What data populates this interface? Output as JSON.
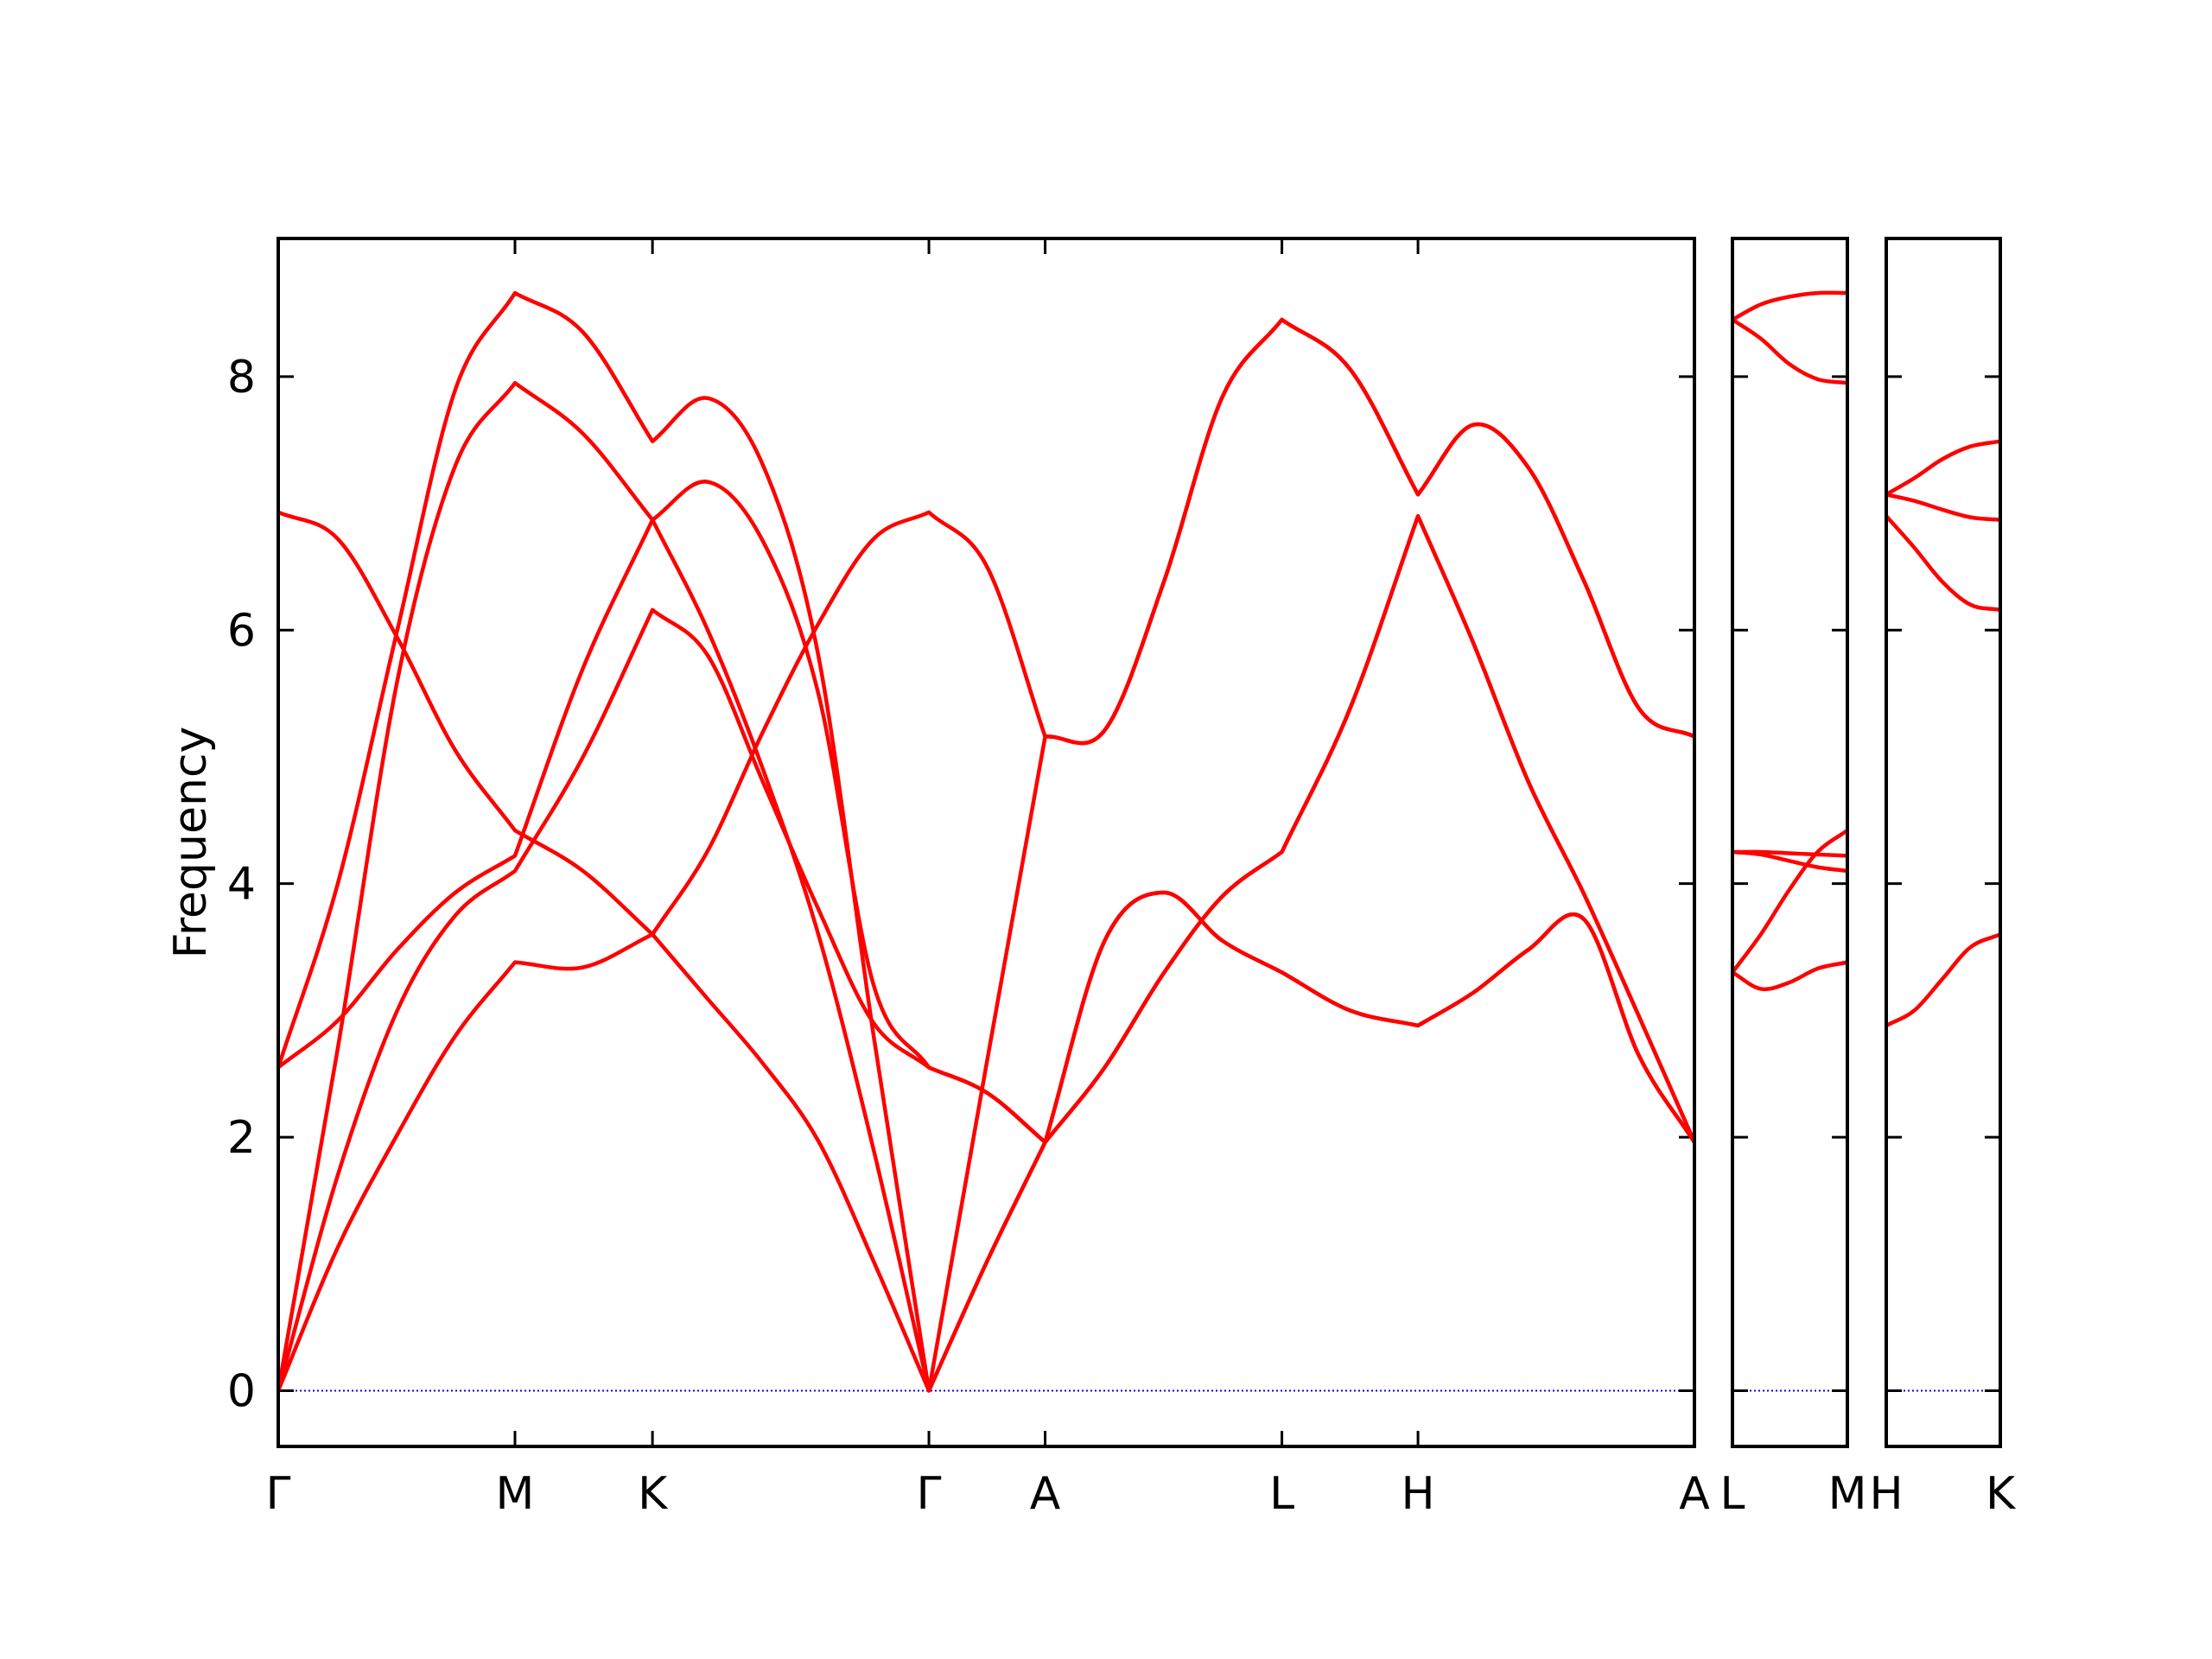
{
  "chart_data": [
    {
      "type": "line",
      "ylabel": "Frequency",
      "ytick_labels": true,
      "xlim": [
        0,
        9.99
      ],
      "ylim": [
        -0.44,
        9.09
      ],
      "yticks": [
        0,
        2,
        4,
        6,
        8
      ],
      "xticks": [
        {
          "value": 0,
          "label": "Γ"
        },
        {
          "value": 1.67,
          "label": "M"
        },
        {
          "value": 2.64,
          "label": "K"
        },
        {
          "value": 4.59,
          "label": "Γ"
        },
        {
          "value": 5.41,
          "label": "A"
        },
        {
          "value": 7.08,
          "label": "L"
        },
        {
          "value": 8.04,
          "label": "H"
        },
        {
          "value": 9.99,
          "label": "A"
        }
      ],
      "zero_line": 0,
      "zero_line_color": "#0000ff",
      "x": [
        0,
        0.42,
        0.84,
        1.25,
        1.67,
        2.15,
        2.64,
        3.03,
        3.42,
        3.81,
        4.2,
        4.59,
        5.0,
        5.41,
        5.83,
        6.25,
        6.66,
        7.08,
        7.56,
        8.04,
        8.43,
        8.82,
        9.21,
        9.6,
        9.99
      ],
      "series": [
        {
          "color": "#ff0000",
          "values": [
            0,
            1.13,
            2.02,
            2.8,
            3.38,
            3.34,
            3.6,
            4.26,
            5.2,
            6.05,
            6.72,
            6.93,
            6.5,
            5.16,
            5.21,
            6.39,
            7.84,
            8.45,
            8.06,
            7.07,
            7.62,
            7.28,
            6.39,
            5.38,
            5.16
          ]
        },
        {
          "color": "#ff0000",
          "values": [
            6.93,
            6.72,
            5.94,
            5.05,
            4.42,
            4.1,
            3.6,
            3.09,
            2.58,
            1.97,
            1.02,
            0,
            1.02,
            1.96,
            3.55,
            3.93,
            3.55,
            3.3,
            3.0,
            2.88,
            3.14,
            3.48,
            3.72,
            2.64,
            1.96
          ]
        },
        {
          "color": "#ff0000",
          "values": [
            2.55,
            2.92,
            3.48,
            3.93,
            4.22,
            5.7,
            6.87,
            7.17,
            6.7,
            5.5,
            3.2,
            2.55,
            2.35,
            1.96,
            2.55,
            3.3,
            3.9,
            4.25,
            5.38,
            6.9,
            5.9,
            4.8,
            3.92,
            2.95,
            1.96
          ]
        },
        {
          "color": "#ff0000",
          "values": [
            0,
            1.7,
            3.0,
            3.75,
            4.1,
            5.0,
            6.16,
            5.8,
            4.8,
            3.8,
            2.9,
            2.55,
            2.35,
            1.96,
            2.55,
            3.3,
            3.9,
            4.25,
            5.38,
            6.9,
            5.9,
            4.8,
            3.92,
            2.95,
            1.96
          ]
        },
        {
          "color": "#ff0000",
          "values": [
            0,
            2.7,
            5.6,
            7.3,
            7.95,
            7.55,
            6.87,
            6.0,
            4.9,
            3.6,
            1.9,
            0,
            2.6,
            5.16,
            5.21,
            6.39,
            7.84,
            8.45,
            8.06,
            7.07,
            7.62,
            7.28,
            6.39,
            5.38,
            5.16
          ]
        },
        {
          "color": "#ff0000",
          "values": [
            2.55,
            4.0,
            6.0,
            7.9,
            8.66,
            8.35,
            7.49,
            7.83,
            7.3,
            5.8,
            2.8,
            0,
            1.02,
            1.96,
            3.55,
            3.93,
            3.55,
            3.3,
            3.0,
            2.88,
            3.14,
            3.48,
            3.72,
            2.64,
            1.96
          ]
        }
      ]
    },
    {
      "type": "line",
      "ytick_labels": false,
      "xlim": [
        0,
        0.81
      ],
      "ylim": [
        -0.44,
        9.09
      ],
      "yticks": [
        0,
        2,
        4,
        6,
        8
      ],
      "xticks": [
        {
          "value": 0,
          "label": "L"
        },
        {
          "value": 0.81,
          "label": "M"
        }
      ],
      "zero_line": 0,
      "zero_line_color": "#0000ff",
      "x": [
        0,
        0.2,
        0.4,
        0.6,
        0.81
      ],
      "series": [
        {
          "color": "#ff0000",
          "values": [
            8.45,
            8.57,
            8.63,
            8.66,
            8.66
          ]
        },
        {
          "color": "#ff0000",
          "values": [
            8.45,
            8.3,
            8.1,
            7.98,
            7.95
          ]
        },
        {
          "color": "#ff0000",
          "values": [
            4.25,
            4.25,
            4.24,
            4.23,
            4.22
          ]
        },
        {
          "color": "#ff0000",
          "values": [
            4.25,
            4.23,
            4.18,
            4.13,
            4.1
          ]
        },
        {
          "color": "#ff0000",
          "values": [
            3.3,
            3.6,
            3.95,
            4.25,
            4.42
          ]
        },
        {
          "color": "#ff0000",
          "values": [
            3.3,
            3.17,
            3.22,
            3.33,
            3.38
          ]
        }
      ]
    },
    {
      "type": "line",
      "ytick_labels": false,
      "xlim": [
        0,
        0.81
      ],
      "ylim": [
        -0.44,
        9.09
      ],
      "yticks": [
        0,
        2,
        4,
        6,
        8
      ],
      "xticks": [
        {
          "value": 0,
          "label": "H"
        },
        {
          "value": 0.81,
          "label": "K"
        }
      ],
      "zero_line": 0,
      "zero_line_color": "#0000ff",
      "x": [
        0,
        0.2,
        0.4,
        0.6,
        0.81
      ],
      "series": [
        {
          "color": "#ff0000",
          "values": [
            7.07,
            7.2,
            7.35,
            7.45,
            7.49
          ]
        },
        {
          "color": "#ff0000",
          "values": [
            7.07,
            7.02,
            6.95,
            6.89,
            6.87
          ]
        },
        {
          "color": "#ff0000",
          "values": [
            6.9,
            6.65,
            6.38,
            6.2,
            6.16
          ]
        },
        {
          "color": "#ff0000",
          "values": [
            2.88,
            3.0,
            3.25,
            3.5,
            3.6
          ]
        }
      ]
    }
  ]
}
